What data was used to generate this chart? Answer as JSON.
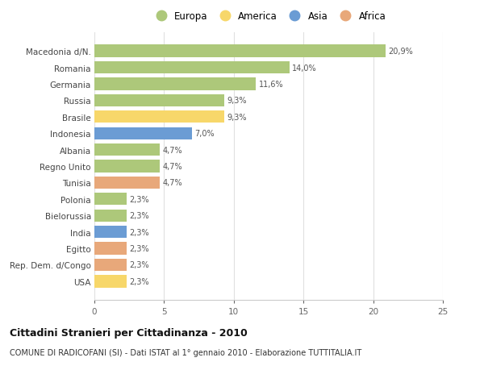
{
  "categories": [
    "Macedonia d/N.",
    "Romania",
    "Germania",
    "Russia",
    "Brasile",
    "Indonesia",
    "Albania",
    "Regno Unito",
    "Tunisia",
    "Polonia",
    "Bielorussia",
    "India",
    "Egitto",
    "Rep. Dem. d/Congo",
    "USA"
  ],
  "values": [
    20.9,
    14.0,
    11.6,
    9.3,
    9.3,
    7.0,
    4.7,
    4.7,
    4.7,
    2.3,
    2.3,
    2.3,
    2.3,
    2.3,
    2.3
  ],
  "labels": [
    "20,9%",
    "14,0%",
    "11,6%",
    "9,3%",
    "9,3%",
    "7,0%",
    "4,7%",
    "4,7%",
    "4,7%",
    "2,3%",
    "2,3%",
    "2,3%",
    "2,3%",
    "2,3%",
    "2,3%"
  ],
  "colors": [
    "#adc87a",
    "#adc87a",
    "#adc87a",
    "#adc87a",
    "#f7d76a",
    "#6b9cd4",
    "#adc87a",
    "#adc87a",
    "#e8a87a",
    "#adc87a",
    "#adc87a",
    "#6b9cd4",
    "#e8a87a",
    "#e8a87a",
    "#f7d76a"
  ],
  "legend": [
    {
      "label": "Europa",
      "color": "#adc87a"
    },
    {
      "label": "America",
      "color": "#f7d76a"
    },
    {
      "label": "Asia",
      "color": "#6b9cd4"
    },
    {
      "label": "Africa",
      "color": "#e8a87a"
    }
  ],
  "xlim": [
    0,
    25
  ],
  "xticks": [
    0,
    5,
    10,
    15,
    20,
    25
  ],
  "title": "Cittadini Stranieri per Cittadinanza - 2010",
  "subtitle": "COMUNE DI RADICOFANI (SI) - Dati ISTAT al 1° gennaio 2010 - Elaborazione TUTTITALIA.IT",
  "background_color": "#ffffff",
  "grid_color": "#e0e0e0",
  "bar_height": 0.75
}
